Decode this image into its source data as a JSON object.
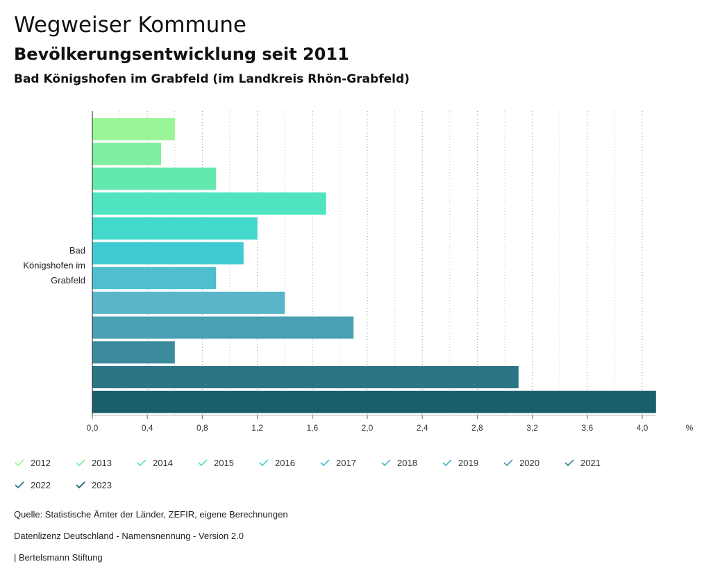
{
  "header": {
    "title": "Wegweiser Kommune",
    "subtitle": "Bevölkerungsentwicklung seit 2011",
    "region": "Bad Königshofen im Grabfeld (im Landkreis Rhön-Grabfeld)"
  },
  "chart_data": {
    "type": "bar",
    "orientation": "horizontal",
    "category_lines": [
      "Bad",
      "Königshofen im",
      "Grabfeld"
    ],
    "unit_label": "%",
    "xlim": [
      0,
      4.1
    ],
    "ticks": [
      0,
      0.4,
      0.8,
      1.2,
      1.6,
      2.0,
      2.4,
      2.8,
      3.2,
      3.6,
      4.0
    ],
    "tick_labels": [
      "0,0",
      "0,4",
      "0,8",
      "1,2",
      "1,6",
      "2,0",
      "2,4",
      "2,8",
      "3,2",
      "3,6",
      "4,0"
    ],
    "grid": true,
    "series": [
      {
        "name": "2012",
        "value": 0.6,
        "color": "#9af596"
      },
      {
        "name": "2013",
        "value": 0.5,
        "color": "#7eeea0"
      },
      {
        "name": "2014",
        "value": 0.9,
        "color": "#63e9ad"
      },
      {
        "name": "2015",
        "value": 1.7,
        "color": "#4fe4bf"
      },
      {
        "name": "2016",
        "value": 1.2,
        "color": "#42d8cb"
      },
      {
        "name": "2017",
        "value": 1.1,
        "color": "#41cad2"
      },
      {
        "name": "2018",
        "value": 0.9,
        "color": "#4fbfcf"
      },
      {
        "name": "2019",
        "value": 1.4,
        "color": "#5ab5c8"
      },
      {
        "name": "2020",
        "value": 1.9,
        "color": "#4b9fb3"
      },
      {
        "name": "2021",
        "value": 0.6,
        "color": "#3c8a9c"
      },
      {
        "name": "2022",
        "value": 3.1,
        "color": "#2b7587"
      },
      {
        "name": "2023",
        "value": 4.1,
        "color": "#1a5e6e"
      }
    ]
  },
  "footer": {
    "source": "Quelle: Statistische Ämter der Länder, ZEFIR, eigene Berechnungen",
    "license": "Datenlizenz Deutschland - Namensnennung - Version 2.0",
    "publisher": "| Bertelsmann Stiftung"
  }
}
